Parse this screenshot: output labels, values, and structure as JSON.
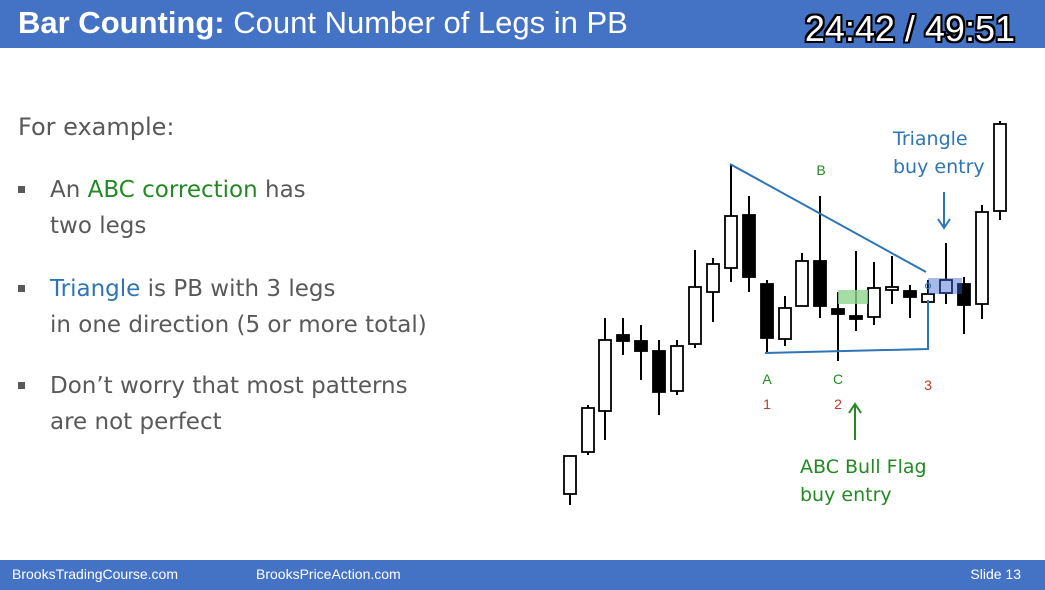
{
  "header": {
    "title_bold": "Bar Counting:",
    "title_rest": " Count Number of Legs in PB",
    "timer": "24:42 / 49:51"
  },
  "body": {
    "intro": "For example:",
    "bullets": [
      {
        "lines": [
          {
            "pre": "An ",
            "hl": "ABC correction",
            "post": " has"
          },
          {
            "text": "two legs"
          }
        ]
      },
      {
        "lines": [
          {
            "pre": "",
            "hl": "Triangle",
            "post": " is PB with 3 legs"
          },
          {
            "text": "in one direction (5 or more total)"
          }
        ]
      },
      {
        "lines": [
          {
            "text": "Don’t worry that most patterns"
          },
          {
            "text": "are not perfect"
          }
        ]
      }
    ]
  },
  "chart": {
    "labels": {
      "A": "A",
      "B": "B",
      "C": "C",
      "n1": "1",
      "n2": "2",
      "n3": "3",
      "tri1": "Triangle",
      "tri2": "buy entry",
      "abc1": "ABC Bull Flag",
      "abc2": "buy entry"
    },
    "colors": {
      "line": "#2e75b6",
      "green_label": "#238a23",
      "red_label": "#c0392b"
    }
  },
  "footer": {
    "left": "BrooksTradingCourse.com",
    "middle": "BrooksPriceAction.com",
    "slide": "Slide  13"
  }
}
